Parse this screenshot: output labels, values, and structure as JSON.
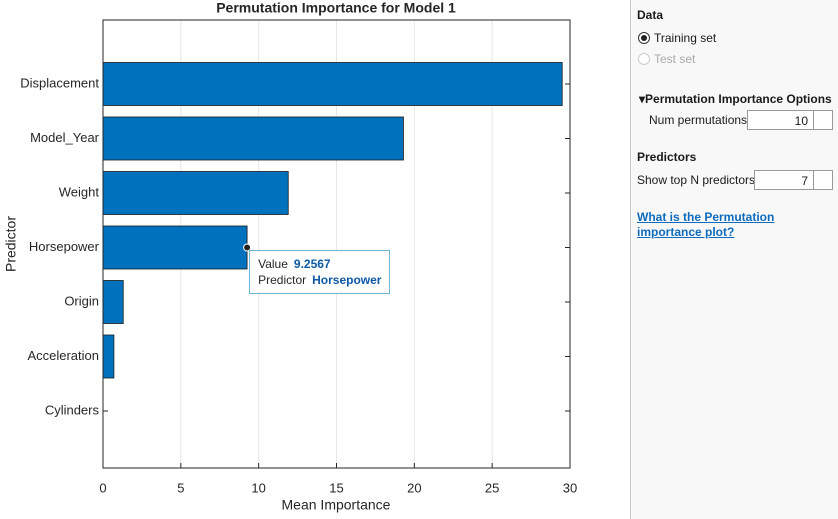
{
  "chart_data": {
    "type": "barh",
    "title": "Permutation Importance for Model 1",
    "categories": [
      "Displacement",
      "Model_Year",
      "Weight",
      "Horsepower",
      "Origin",
      "Acceleration",
      "Cylinders"
    ],
    "values": [
      29.5,
      19.3,
      11.9,
      9.2567,
      1.3,
      0.7,
      0
    ],
    "color": "#0072bd",
    "xlim": [
      0,
      30
    ],
    "xticks": [
      0,
      5,
      10,
      15,
      20,
      25,
      30
    ],
    "grid": true,
    "xlabel": "Mean Importance",
    "ylabel": "Predictor"
  },
  "tooltip": {
    "value_label": "Value",
    "value": 9.2567,
    "predictor_label": "Predictor",
    "predictor": "Horsepower"
  },
  "panel": {
    "data_heading": "Data",
    "training_set": "Training set",
    "test_set": "Test set",
    "options_heading": "Permutation Importance Options",
    "num_permutations_label": "Num permutations",
    "num_permutations": 10,
    "predictors_heading": "Predictors",
    "top_n_label": "Show top N predictors",
    "top_n": 7,
    "help_link": "What is the Permutation importance plot?"
  }
}
